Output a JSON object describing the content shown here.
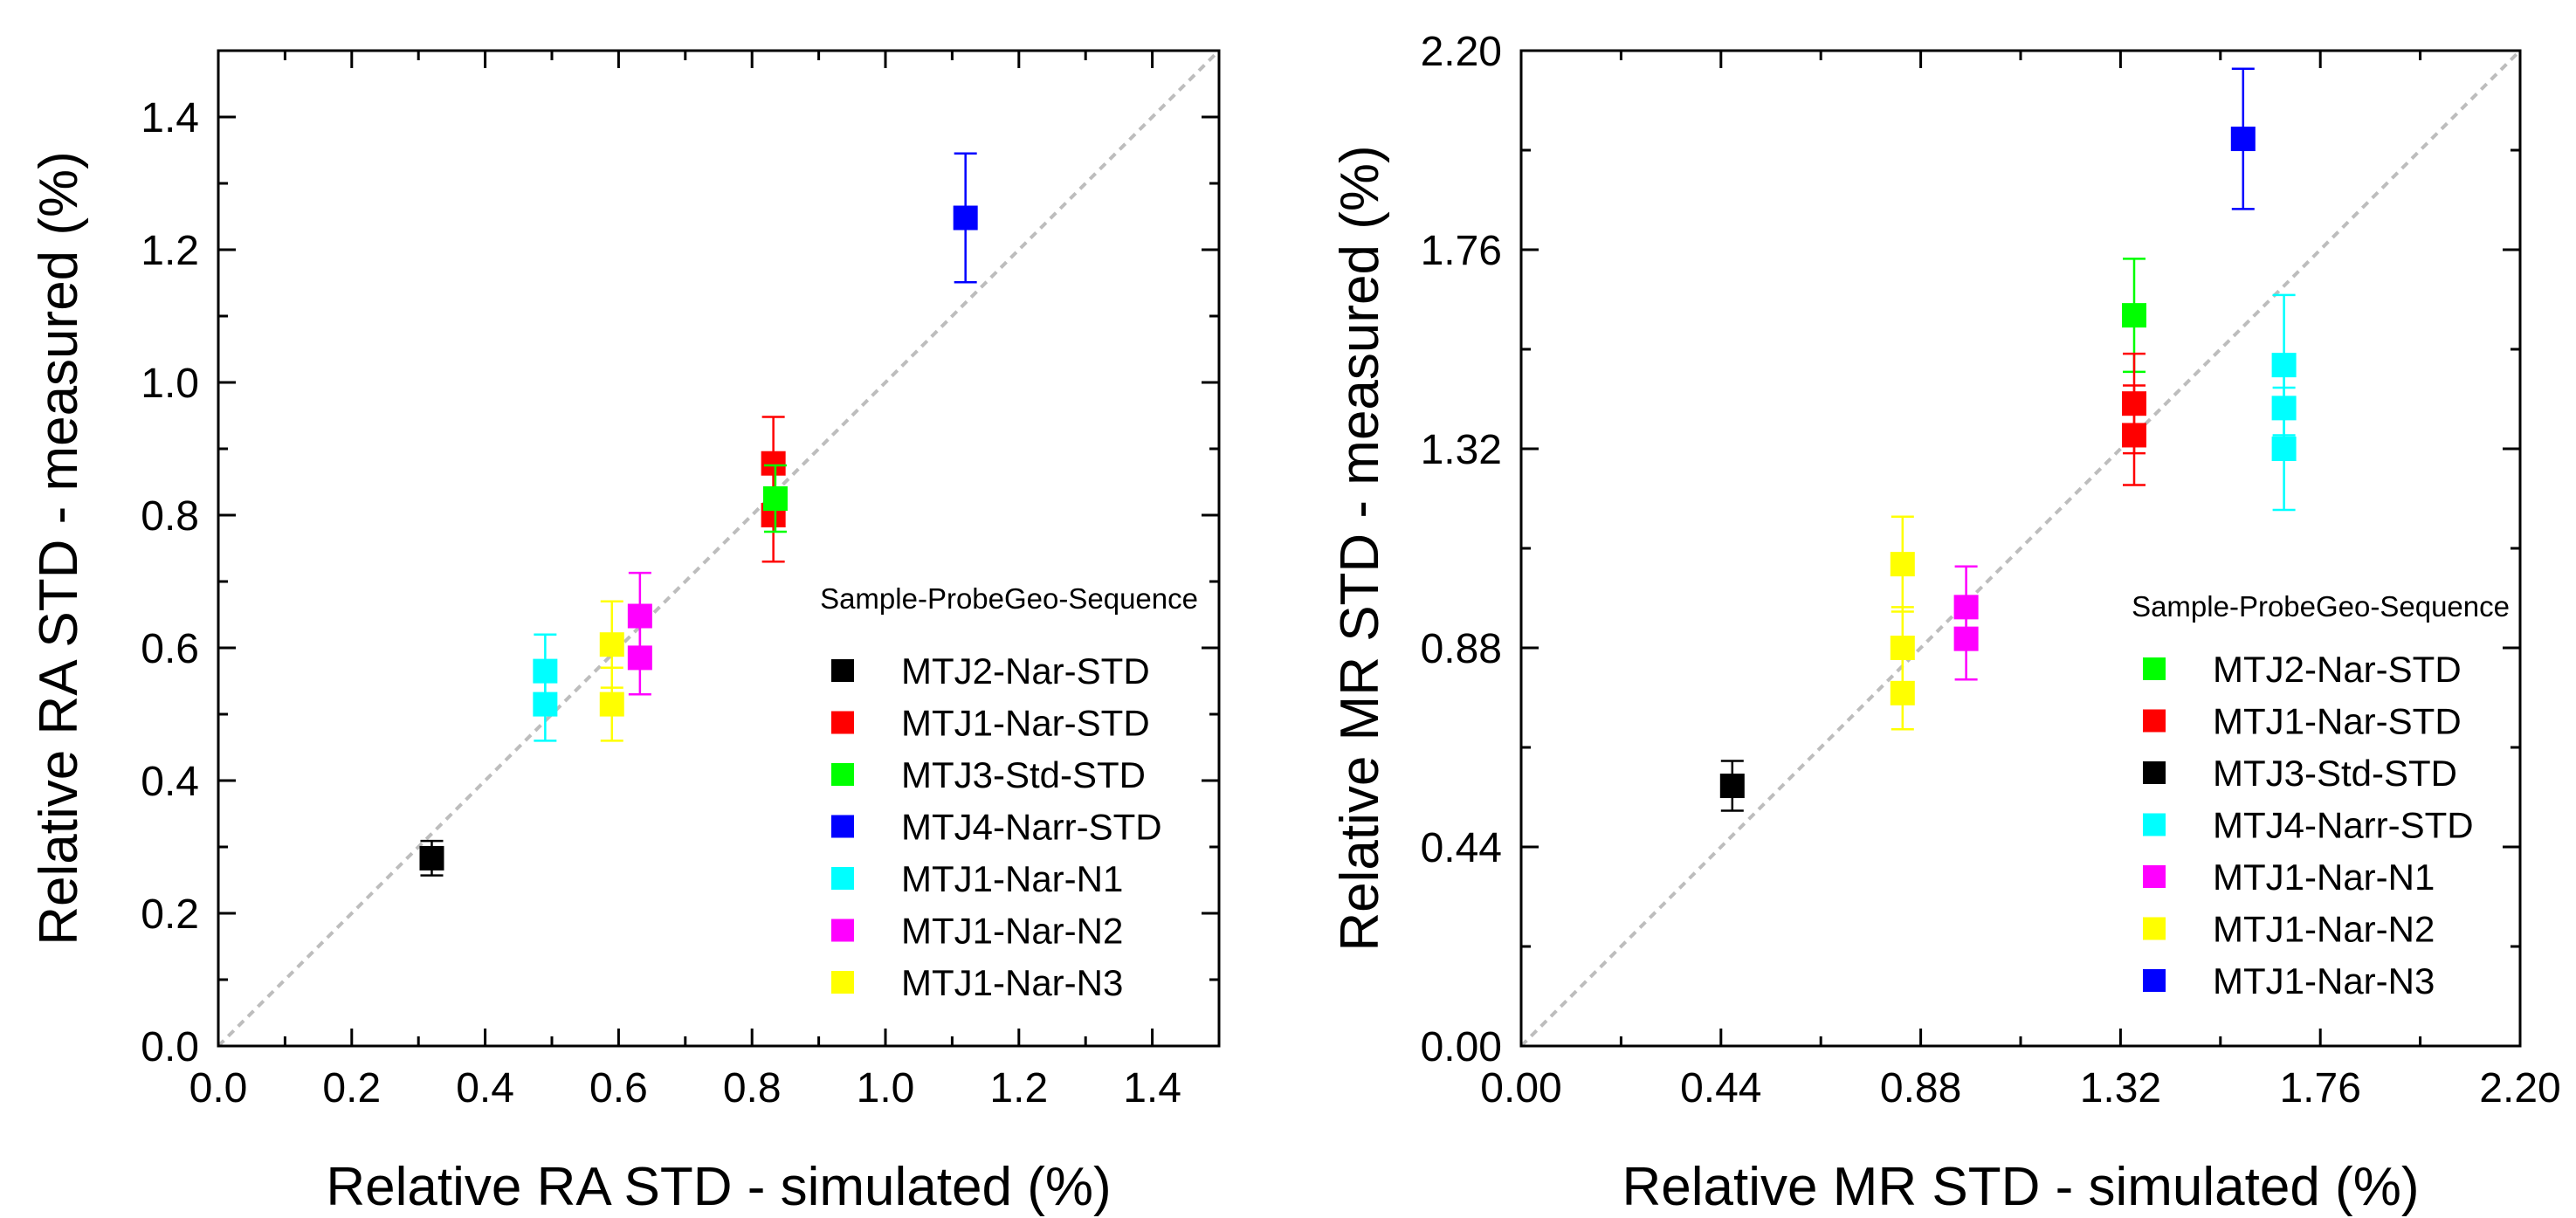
{
  "chart_data": [
    {
      "type": "scatter",
      "xlabel": "Relative RA STD - simulated (%)",
      "ylabel": "Relative RA STD - measured (%)",
      "xlim": [
        0.0,
        1.5
      ],
      "ylim": [
        0.0,
        1.5
      ],
      "xticks": [
        "0.0",
        "0.2",
        "0.4",
        "0.6",
        "0.8",
        "1.0",
        "1.2",
        "1.4"
      ],
      "yticks": [
        "0.0",
        "0.2",
        "0.4",
        "0.6",
        "0.8",
        "1.0",
        "1.2",
        "1.4"
      ],
      "xtick_values": [
        0,
        0.2,
        0.4,
        0.6,
        0.8,
        1.0,
        1.2,
        1.4
      ],
      "ytick_values": [
        0,
        0.2,
        0.4,
        0.6,
        0.8,
        1.0,
        1.2,
        1.4
      ],
      "minor_step": 0.1,
      "reference_line": "y = x (dashed, grey)",
      "legend_title": "Sample-ProbeGeo-Sequence",
      "legend_position": "lower-right",
      "series": [
        {
          "name": "MTJ2-Nar-STD",
          "color": "#000000",
          "points": [
            {
              "x": 0.32,
              "y": 0.283,
              "err": 0.026
            }
          ]
        },
        {
          "name": "MTJ1-Nar-STD",
          "color": "#ff0000",
          "points": [
            {
              "x": 0.832,
              "y": 0.878,
              "err": 0.07
            },
            {
              "x": 0.832,
              "y": 0.8,
              "err": 0.07
            }
          ]
        },
        {
          "name": "MTJ3-Std-STD",
          "color": "#00ff00",
          "points": [
            {
              "x": 0.835,
              "y": 0.825,
              "err": 0.05
            }
          ]
        },
        {
          "name": "MTJ4-Narr-STD",
          "color": "#0000ff",
          "points": [
            {
              "x": 1.12,
              "y": 1.248,
              "err": 0.097
            }
          ]
        },
        {
          "name": "MTJ1-Nar-N1",
          "color": "#00ffff",
          "points": [
            {
              "x": 0.49,
              "y": 0.565,
              "err": 0.055
            },
            {
              "x": 0.49,
              "y": 0.515,
              "err": 0.055
            }
          ]
        },
        {
          "name": "MTJ1-Nar-N2",
          "color": "#ff00ff",
          "points": [
            {
              "x": 0.632,
              "y": 0.648,
              "err": 0.065
            },
            {
              "x": 0.632,
              "y": 0.585,
              "err": 0.055
            }
          ]
        },
        {
          "name": "MTJ1-Nar-N3",
          "color": "#ffff00",
          "points": [
            {
              "x": 0.59,
              "y": 0.605,
              "err": 0.065
            },
            {
              "x": 0.59,
              "y": 0.515,
              "err": 0.055
            }
          ]
        }
      ]
    },
    {
      "type": "scatter",
      "xlabel": "Relative MR STD - simulated (%)",
      "ylabel": "Relative MR STD - measured (%)",
      "xlim": [
        0.0,
        2.2
      ],
      "ylim": [
        0.0,
        2.2
      ],
      "xticks": [
        "0.00",
        "0.44",
        "0.88",
        "1.32",
        "1.76",
        "2.20"
      ],
      "yticks": [
        "0.00",
        "0.44",
        "0.88",
        "1.32",
        "1.76",
        "2.20"
      ],
      "xtick_values": [
        0,
        0.44,
        0.88,
        1.32,
        1.76,
        2.2
      ],
      "ytick_values": [
        0,
        0.44,
        0.88,
        1.32,
        1.76,
        2.2
      ],
      "minor_step": 0.22,
      "reference_line": "y = x (dashed, grey)",
      "legend_title": "Sample-ProbeGeo-Sequence",
      "legend_position": "lower-right",
      "series": [
        {
          "name": "MTJ2-Nar-STD",
          "color": "#00ff00",
          "points": [
            {
              "x": 1.35,
              "y": 1.615,
              "err": 0.125
            }
          ]
        },
        {
          "name": "MTJ1-Nar-STD",
          "color": "#ff0000",
          "points": [
            {
              "x": 1.35,
              "y": 1.42,
              "err": 0.11
            },
            {
              "x": 1.35,
              "y": 1.35,
              "err": 0.11
            }
          ]
        },
        {
          "name": "MTJ3-Std-STD",
          "color": "#000000",
          "points": [
            {
              "x": 0.465,
              "y": 0.575,
              "err": 0.055
            }
          ]
        },
        {
          "name": "MTJ4-Narr-STD",
          "color": "#00ffff",
          "points": [
            {
              "x": 1.68,
              "y": 1.505,
              "err": 0.155
            },
            {
              "x": 1.68,
              "y": 1.41,
              "err": 0.11
            },
            {
              "x": 1.68,
              "y": 1.32,
              "err": 0.135
            }
          ]
        },
        {
          "name": "MTJ1-Nar-N1",
          "color": "#ff00ff",
          "points": [
            {
              "x": 0.98,
              "y": 0.97,
              "err": 0.09
            },
            {
              "x": 0.98,
              "y": 0.9,
              "err": 0.09
            }
          ]
        },
        {
          "name": "MTJ1-Nar-N2",
          "color": "#ffff00",
          "points": [
            {
              "x": 0.84,
              "y": 1.065,
              "err": 0.105
            },
            {
              "x": 0.84,
              "y": 0.88,
              "err": 0.09
            },
            {
              "x": 0.84,
              "y": 0.78,
              "err": 0.08
            }
          ]
        },
        {
          "name": "MTJ1-Nar-N3",
          "color": "#0000ff",
          "points": [
            {
              "x": 1.59,
              "y": 2.005,
              "err": 0.155
            }
          ]
        }
      ]
    }
  ]
}
